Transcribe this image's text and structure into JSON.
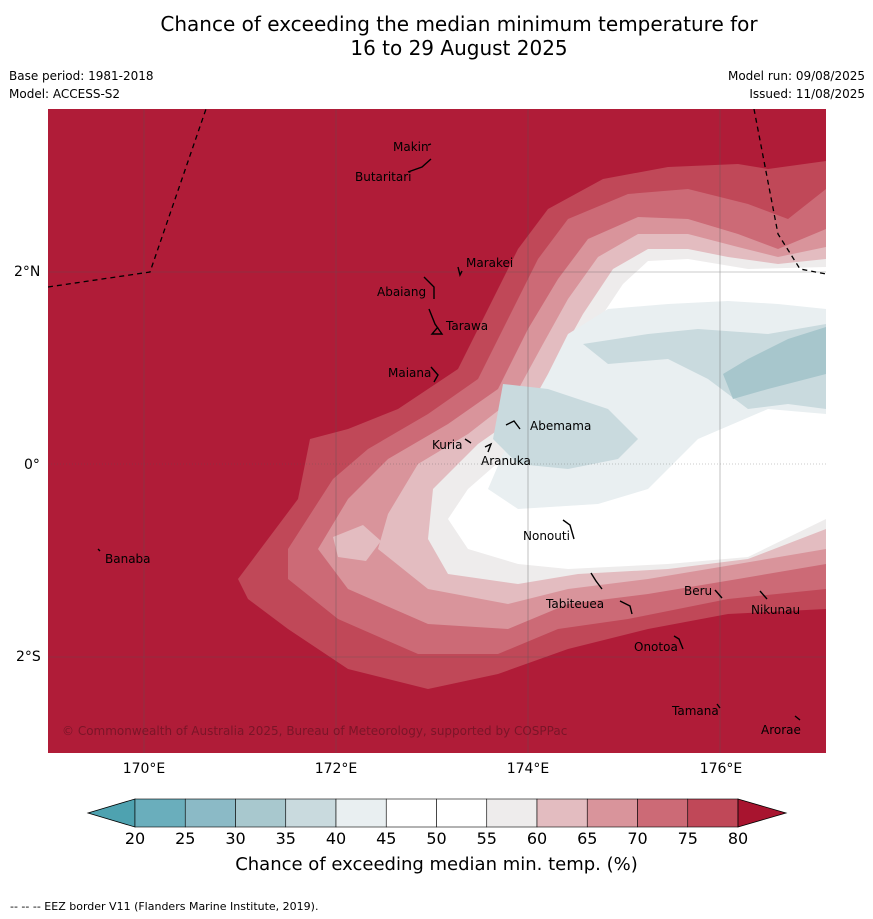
{
  "title": {
    "line1": "Chance of exceeding the median minimum temperature for",
    "line2": "16 to 29 August 2025"
  },
  "meta": {
    "base_period": "Base period: 1981-2018",
    "model": "Model: ACCESS-S2",
    "model_run": "Model run: 09/08/2025",
    "issued": "Issued: 11/08/2025"
  },
  "map": {
    "lat_labels": [
      "2°N",
      "0°",
      "2°S"
    ],
    "lon_labels": [
      "170°E",
      "172°E",
      "174°E",
      "176°E"
    ],
    "islands": [
      "Makin",
      "Butaritari",
      "Marakei",
      "Abaiang",
      "Tarawa",
      "Maiana",
      "Abemama",
      "Kuria",
      "Aranuka",
      "Banaba",
      "Nonouti",
      "Tabiteuea",
      "Beru",
      "Nikunau",
      "Onotoa",
      "Tamana",
      "Arorae"
    ],
    "copyright": "© Commonwealth of Australia 2025, Bureau of Meteorology, supported by COSPPac",
    "eez_border": "dashed",
    "colors": {
      "80plus": "#b01c38",
      "75": "#c04858",
      "70": "#cc6a76",
      "65": "#d9949b",
      "60": "#e3bcc0",
      "55": "#eeecec",
      "45to55": "#ffffff",
      "40": "#e9eff1",
      "35": "#c8dadf",
      "30": "#a7c6cc"
    }
  },
  "colorbar": {
    "ticks": [
      "20",
      "25",
      "30",
      "35",
      "40",
      "45",
      "50",
      "55",
      "60",
      "65",
      "70",
      "75",
      "80"
    ],
    "colors": [
      "#6aaebc",
      "#8bbac6",
      "#a8c8ce",
      "#c9dade",
      "#e9eff1",
      "#ffffff",
      "#ffffff",
      "#eeecec",
      "#e3bcc0",
      "#d9949b",
      "#cc6a76",
      "#c04858"
    ],
    "low_color": "#4ea2b0",
    "high_color": "#a8142f",
    "label": "Chance of exceeding median min. temp. (%)"
  },
  "footer": "--  --  -- EEZ border V11 (Flanders Marine Institute, 2019)."
}
